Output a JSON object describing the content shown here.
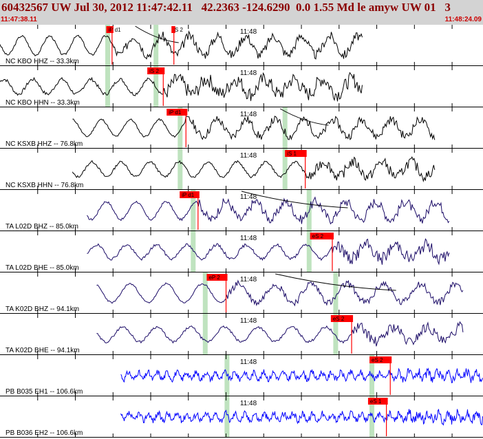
{
  "header": {
    "title": "60432567 UW Jul 30, 2012 11:47:42.11   42.2363 -124.6290  0.0 1.55 Md le amyw UW 01   3",
    "time_start": "11:47:38.11",
    "time_end": "11:48:24.09"
  },
  "colors": {
    "header_bg": "#d3d3d3",
    "header_text": "#8b0000",
    "time_text": "#cc0000",
    "pick_flag": "#ff0000",
    "window_band": "#bfe3bf",
    "trace_uw": "#000000",
    "trace_ta": "#1a0a66",
    "trace_pb": "#0000ff"
  },
  "minute_label": "11:48",
  "traces": [
    {
      "label": "NC KBO HHZ -- 33.3km",
      "color": "trace_uw",
      "start": 0.0,
      "end": 0.75,
      "period": 0.058,
      "amp": 0.38,
      "noise": 0.18,
      "seed": 3,
      "picks": [
        {
          "label": "iP d1",
          "pos": 0.22,
          "marker": 0.232
        },
        {
          "label": "iS 2",
          "pos": 0.355,
          "marker": 0.36
        }
      ],
      "bands": [
        0.218,
        0.318
      ],
      "curve": {
        "from": 0.28,
        "to": 0.37
      }
    },
    {
      "label": "NC KBO HHN -- 33.3km",
      "color": "trace_uw",
      "start": 0.0,
      "end": 0.75,
      "period": 0.06,
      "amp": 0.3,
      "noise": 0.28,
      "seed": 7,
      "picks": [
        {
          "label": "iS 2",
          "pos": 0.305,
          "marker": 0.338
        }
      ],
      "bands": [
        0.218,
        0.318
      ]
    },
    {
      "label": "NC KSXB HHZ -- 76.8km",
      "color": "trace_uw",
      "start": 0.15,
      "end": 0.9,
      "period": 0.06,
      "amp": 0.34,
      "noise": 0.16,
      "seed": 11,
      "picks": [
        {
          "label": "iP d1",
          "pos": 0.345,
          "marker": 0.385
        }
      ],
      "bands": [
        0.368,
        0.585
      ],
      "curve": {
        "from": 0.58,
        "to": 0.68
      }
    },
    {
      "label": "NC KSXB HHN -- 76.8km",
      "color": "trace_uw",
      "start": 0.15,
      "end": 0.9,
      "period": 0.06,
      "amp": 0.3,
      "noise": 0.2,
      "seed": 13,
      "picks": [
        {
          "label": "iS 1",
          "pos": 0.59,
          "marker": 0.632
        }
      ],
      "bands": [
        0.368,
        0.585
      ]
    },
    {
      "label": "TA L02D BHZ -- 85.0km",
      "color": "trace_ta",
      "start": 0.18,
      "end": 0.93,
      "period": 0.062,
      "amp": 0.36,
      "noise": 0.18,
      "seed": 17,
      "picks": [
        {
          "label": "iP d1",
          "pos": 0.372,
          "marker": 0.41
        }
      ],
      "bands": [
        0.395,
        0.635
      ],
      "curve": {
        "from": 0.5,
        "to": 0.72
      }
    },
    {
      "label": "TA L02D BHE -- 85.0km",
      "color": "trace_ta",
      "start": 0.18,
      "end": 0.93,
      "period": 0.062,
      "amp": 0.28,
      "noise": 0.24,
      "seed": 19,
      "picks": [
        {
          "label": "eS 2",
          "pos": 0.642,
          "marker": 0.688
        }
      ],
      "bands": [
        0.395,
        0.635
      ]
    },
    {
      "label": "TA K02D BHZ -- 94.1km",
      "color": "trace_ta",
      "start": 0.2,
      "end": 0.96,
      "period": 0.075,
      "amp": 0.38,
      "noise": 0.14,
      "seed": 23,
      "picks": [
        {
          "label": "eP 2",
          "pos": 0.428,
          "marker": 0.468
        }
      ],
      "bands": [
        0.42,
        0.69
      ],
      "curve": {
        "from": 0.57,
        "to": 0.82
      }
    },
    {
      "label": "TA K02D BHE -- 94.1km",
      "color": "trace_ta",
      "start": 0.2,
      "end": 0.96,
      "period": 0.07,
      "amp": 0.3,
      "noise": 0.2,
      "seed": 29,
      "picks": [
        {
          "label": "eS 2",
          "pos": 0.685,
          "marker": 0.728
        }
      ],
      "bands": [
        0.42,
        0.69
      ]
    },
    {
      "label": "PB B035 EH1 -- 106.6km",
      "color": "trace_pb",
      "start": 0.25,
      "end": 1.0,
      "period": 0.02,
      "amp": 0.14,
      "noise": 0.24,
      "seed": 31,
      "picks": [
        {
          "label": "eS 2",
          "pos": 0.765,
          "marker": 0.808
        }
      ],
      "bands": [
        0.465,
        0.765
      ]
    },
    {
      "label": "PB B036 EH2 -- 106.6km",
      "color": "trace_pb",
      "start": 0.25,
      "end": 1.0,
      "period": 0.02,
      "amp": 0.14,
      "noise": 0.26,
      "seed": 37,
      "picks": [
        {
          "label": "eS 1",
          "pos": 0.762,
          "marker": 0.8
        }
      ],
      "bands": [
        0.465,
        0.765
      ]
    }
  ]
}
